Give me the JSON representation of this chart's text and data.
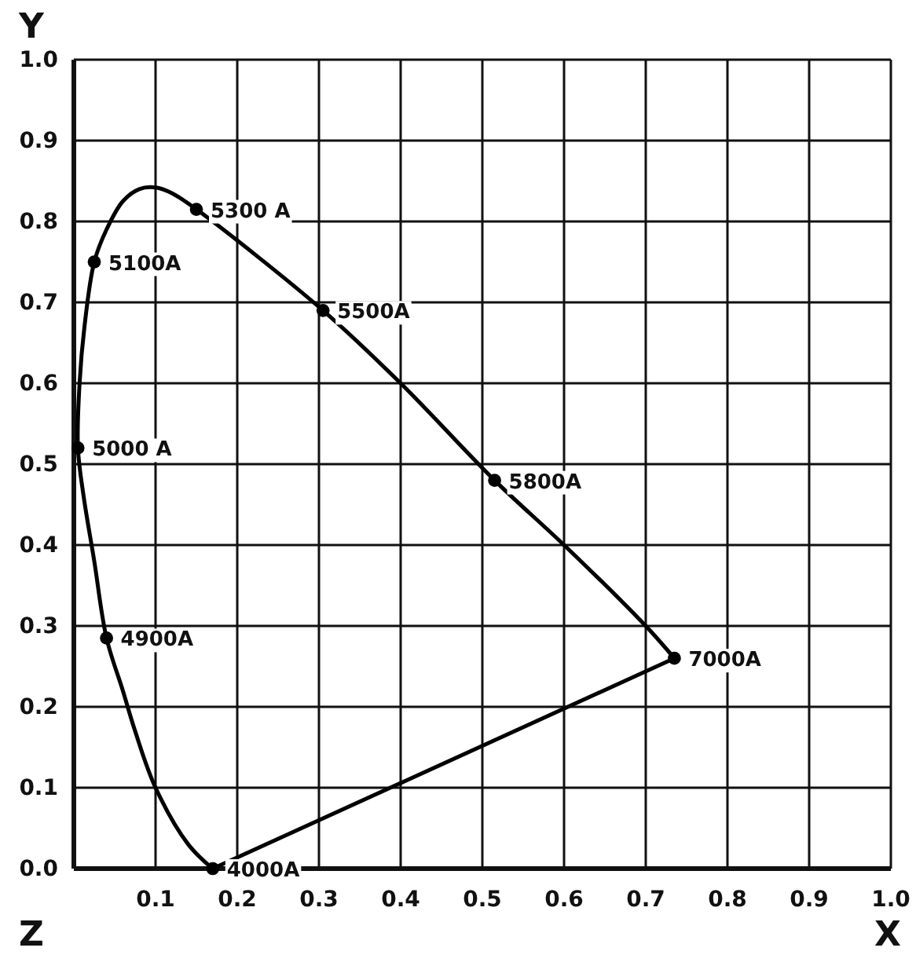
{
  "chart_data": {
    "type": "line",
    "xlabel": "X",
    "ylabel": "Y",
    "grid": true,
    "xlim": [
      0,
      1
    ],
    "ylim": [
      0,
      1
    ],
    "xticks": [
      0.1,
      0.2,
      0.3,
      0.4,
      0.5,
      0.6,
      0.7,
      0.8,
      0.9,
      {
        "value": 1,
        "label": "1.0"
      }
    ],
    "yticks": [
      {
        "value": 0,
        "label": "0.0"
      },
      0.1,
      0.2,
      0.3,
      0.4,
      0.5,
      0.6,
      0.7,
      0.8,
      0.9,
      {
        "value": 1,
        "label": "1.0"
      }
    ],
    "series": [
      {
        "color": "#000000",
        "marker": "none",
        "x": [
          0.17,
          0.14,
          0.1,
          0.075,
          0.06,
          0.04,
          0.025,
          0.012,
          0.005,
          0.007,
          0.013,
          0.025,
          0.04,
          0.06,
          0.08,
          0.1,
          0.12,
          0.15,
          0.305,
          0.4,
          0.515,
          0.6,
          0.7,
          0.735
        ],
        "values": [
          0.0,
          0.03,
          0.1,
          0.17,
          0.22,
          0.285,
          0.38,
          0.46,
          0.52,
          0.6,
          0.67,
          0.75,
          0.79,
          0.825,
          0.84,
          0.842,
          0.835,
          0.815,
          0.69,
          0.6,
          0.48,
          0.4,
          0.3,
          0.26
        ]
      },
      {
        "color": "#000000",
        "marker": "none",
        "x": [
          0.735,
          0.17
        ],
        "values": [
          0.26,
          0.0
        ]
      },
      {
        "type": "scatter",
        "color": "#000000",
        "marker": "circle",
        "x": [
          0.17,
          0.04,
          0.005,
          0.025,
          0.15,
          0.305,
          0.515,
          0.735
        ],
        "values": [
          0.0,
          0.285,
          0.52,
          0.75,
          0.815,
          0.69,
          0.48,
          0.26
        ]
      }
    ],
    "annotations": [
      {
        "text": "4000A",
        "x": 0.17,
        "y": 0.0
      },
      {
        "text": "4900A",
        "x": 0.04,
        "y": 0.285
      },
      {
        "text": "5000 A",
        "x": 0.005,
        "y": 0.52
      },
      {
        "text": "5100A",
        "x": 0.025,
        "y": 0.75
      },
      {
        "text": "5300 A",
        "x": 0.15,
        "y": 0.815
      },
      {
        "text": "5500A",
        "x": 0.305,
        "y": 0.69
      },
      {
        "text": "5800A",
        "x": 0.515,
        "y": 0.48
      },
      {
        "text": "7000A",
        "x": 0.735,
        "y": 0.26
      },
      "Z"
    ]
  }
}
